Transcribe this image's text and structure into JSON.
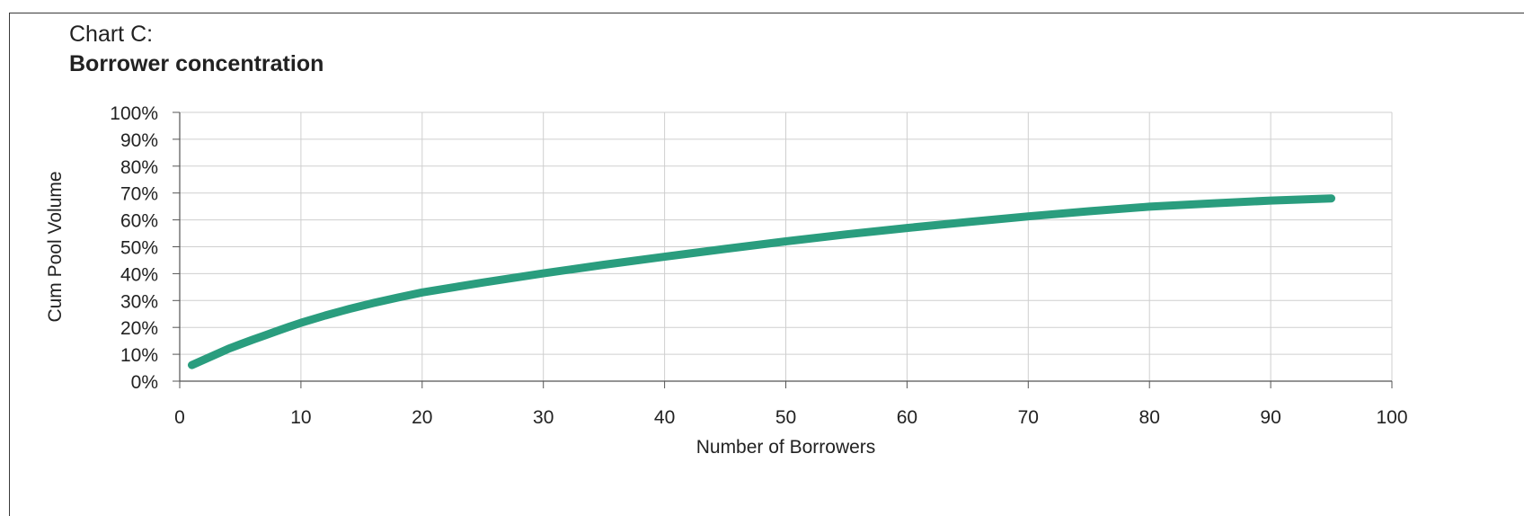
{
  "header": {
    "subtitle": "Chart C:",
    "title": "Borrower concentration"
  },
  "chart_data": {
    "type": "line",
    "title": "Borrower concentration",
    "subtitle": "Chart C:",
    "xlabel": "Number of Borrowers",
    "ylabel": "Cum Pool Volume",
    "xlim": [
      0,
      100
    ],
    "ylim": [
      0,
      100
    ],
    "x_ticks": [
      "0",
      "10",
      "20",
      "30",
      "40",
      "50",
      "60",
      "70",
      "80",
      "90",
      "100"
    ],
    "y_ticks": [
      "0%",
      "10%",
      "20%",
      "30%",
      "40%",
      "50%",
      "60%",
      "70%",
      "80%",
      "90%",
      "100%"
    ],
    "grid": true,
    "legend": "none",
    "series_color": "#2a9d7e",
    "series": [
      {
        "x": [
          1,
          2,
          3,
          4,
          5,
          6,
          7,
          8,
          9,
          10,
          12,
          14,
          16,
          18,
          20,
          25,
          30,
          35,
          40,
          45,
          50,
          55,
          60,
          65,
          70,
          75,
          80,
          85,
          90,
          95
        ],
        "values": [
          6,
          8,
          10,
          12,
          13.7,
          15.4,
          17,
          18.6,
          20.2,
          21.7,
          24.4,
          26.9,
          29.1,
          31.1,
          33,
          36.7,
          40.1,
          43.3,
          46.3,
          49.2,
          52,
          54.6,
          57,
          59.2,
          61.3,
          63.2,
          64.9,
          66.1,
          67.2,
          68
        ]
      }
    ]
  }
}
